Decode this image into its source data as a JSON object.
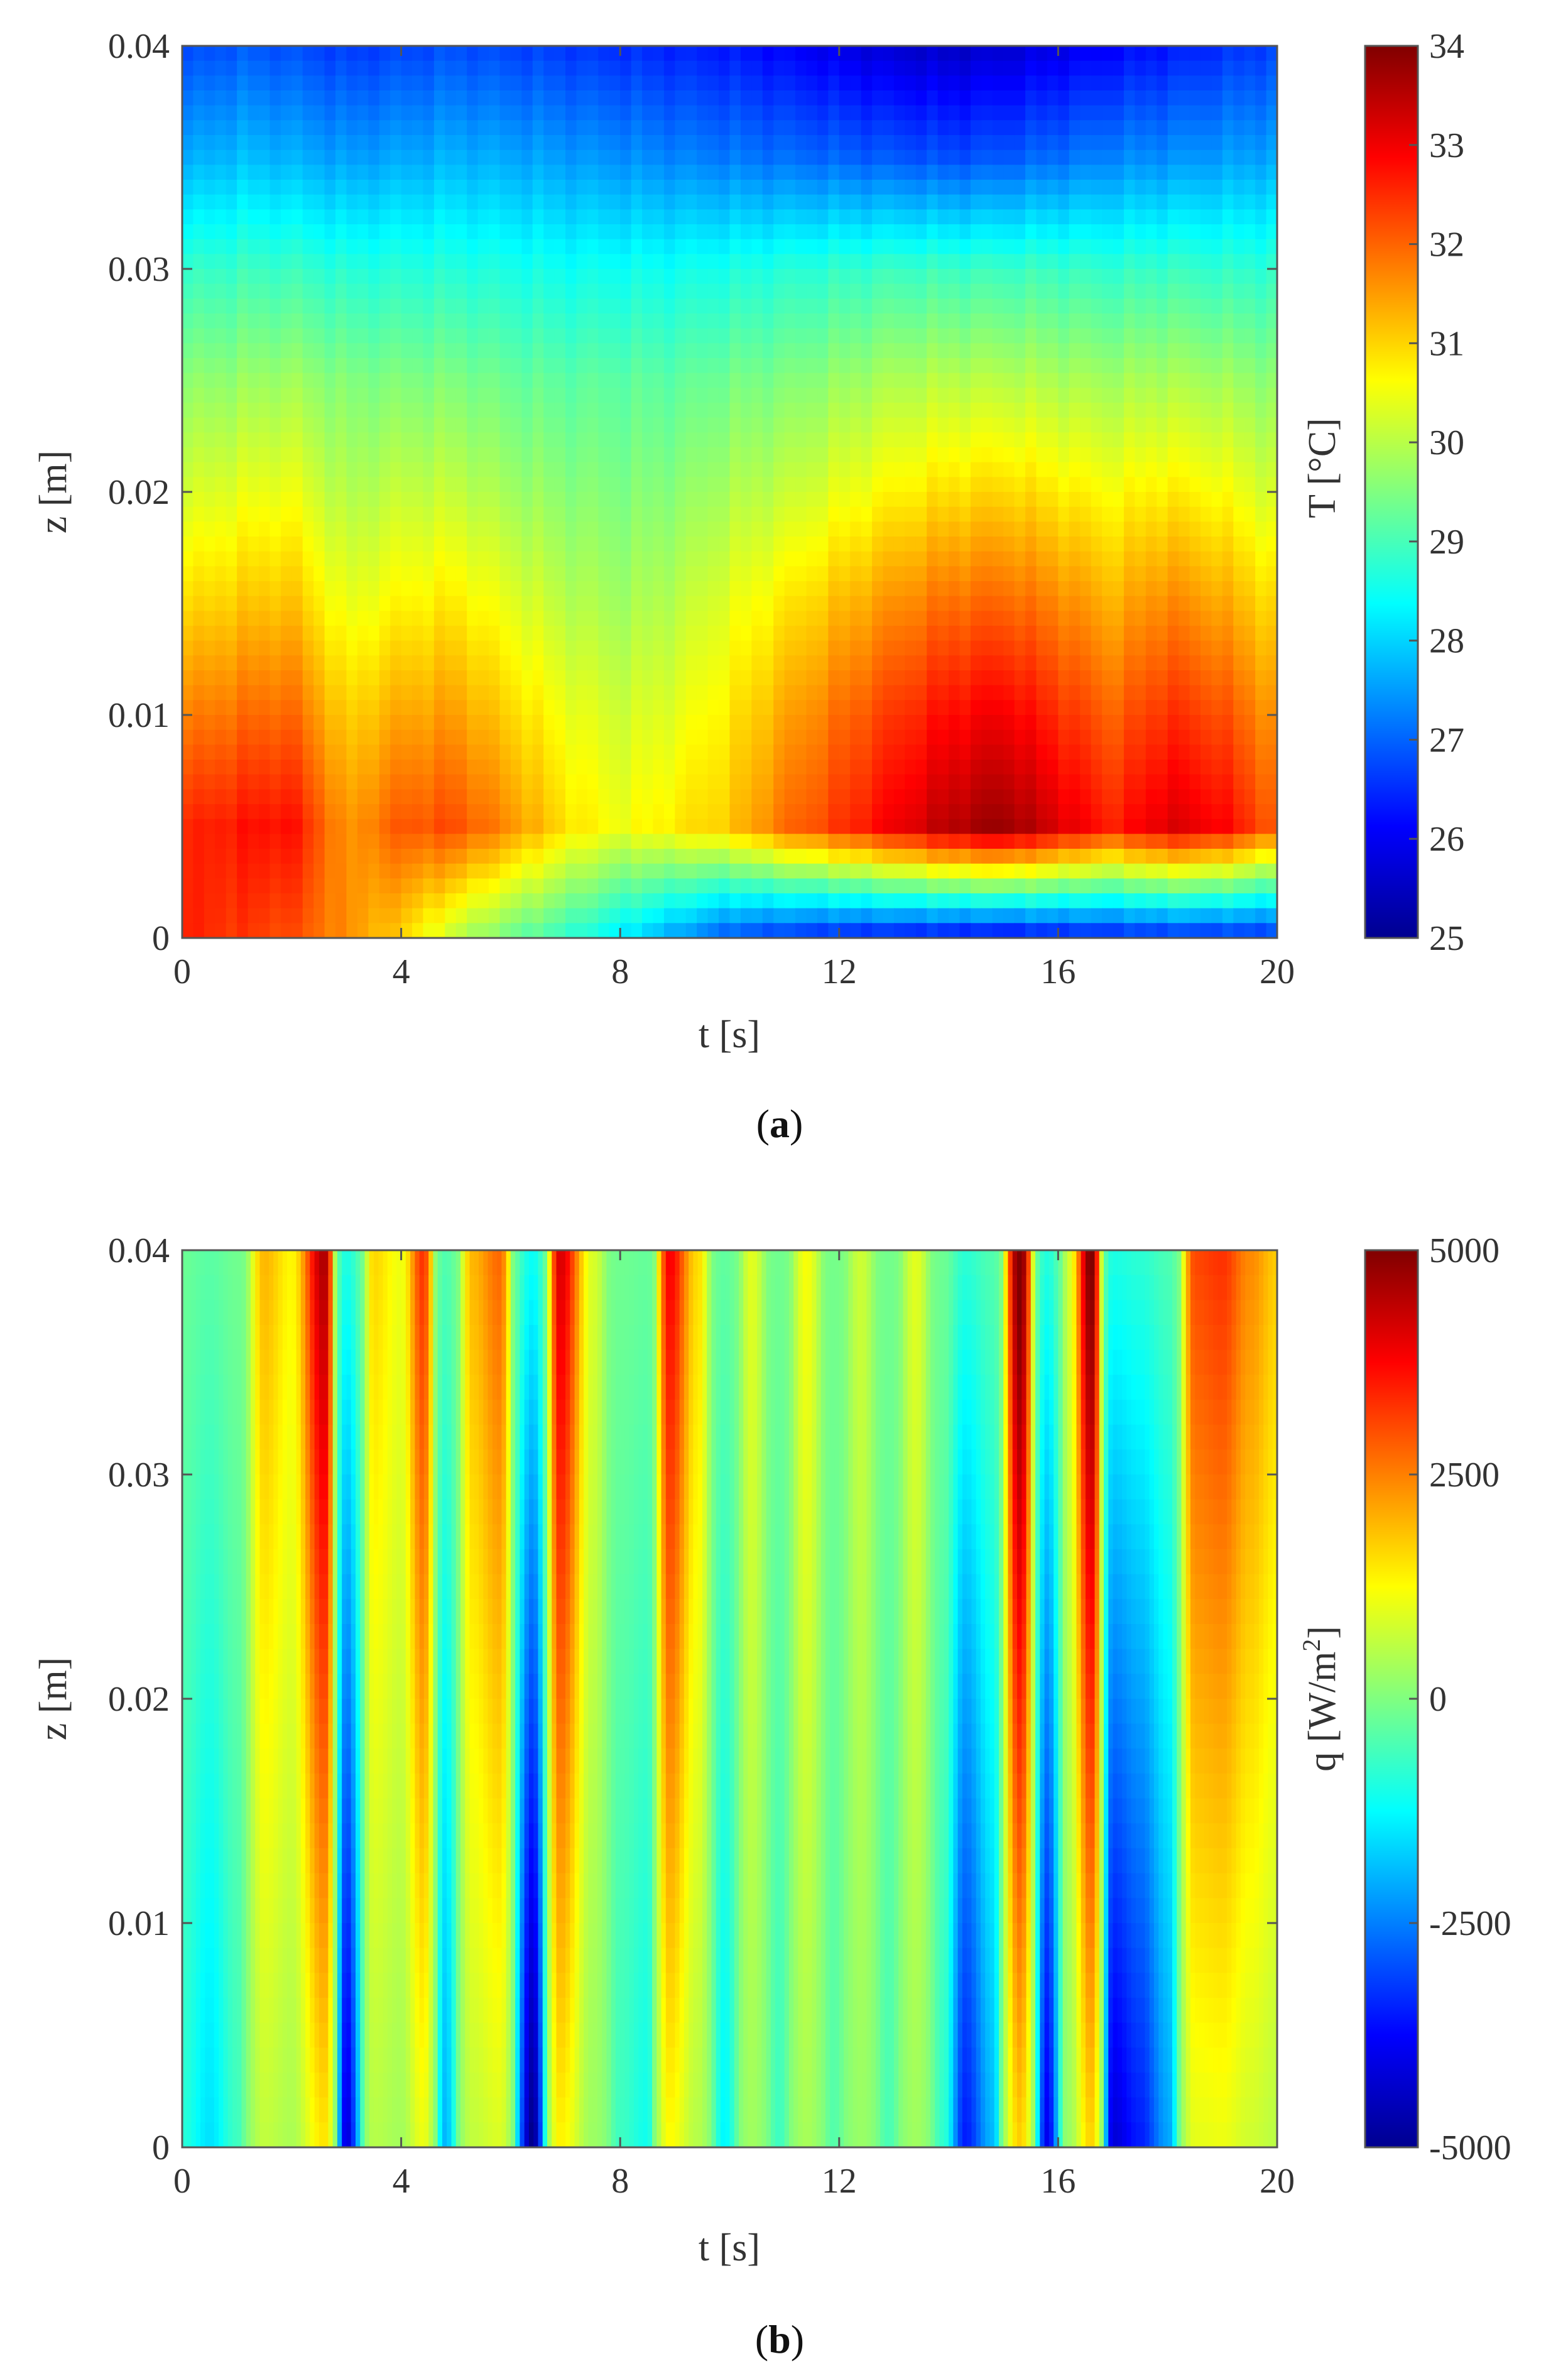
{
  "chart_data": [
    {
      "type": "heatmap",
      "panel_label": "a",
      "xlabel": "t [s]",
      "ylabel": "z [m]",
      "colorbar_label": "T [°C]",
      "xlim": [
        0,
        20
      ],
      "ylim": [
        0,
        0.04
      ],
      "x_ticks": [
        "0",
        "4",
        "8",
        "12",
        "16",
        "20"
      ],
      "y_ticks": [
        "0",
        "0.01",
        "0.02",
        "0.03",
        "0.04"
      ],
      "color_range": [
        25,
        34
      ],
      "colorbar_ticks": [
        "25",
        "26",
        "27",
        "28",
        "29",
        "30",
        "31",
        "32",
        "33",
        "34"
      ],
      "colormap": "jet",
      "grid": false,
      "t": [
        0,
        1,
        2,
        3,
        4,
        5,
        6,
        7,
        8,
        9,
        10,
        11,
        12,
        13,
        14,
        15,
        16,
        17,
        18,
        19,
        20
      ],
      "z": [
        0,
        0.005,
        0.01,
        0.015,
        0.02,
        0.025,
        0.03,
        0.035,
        0.04
      ],
      "values": [
        [
          32.6,
          32.4,
          32.2,
          31.6,
          31.0,
          30.0,
          29.3,
          28.8,
          28.2,
          27.5,
          26.8,
          26.5,
          26.3,
          26.2,
          26.1,
          26.0,
          26.2,
          26.3,
          26.4,
          26.4,
          26.5
        ],
        [
          32.5,
          32.7,
          32.8,
          31.5,
          32.1,
          32.2,
          31.6,
          30.9,
          30.5,
          30.8,
          31.1,
          31.9,
          32.4,
          33.0,
          33.5,
          33.8,
          33.2,
          32.6,
          33.2,
          32.9,
          32.0
        ],
        [
          31.7,
          31.9,
          32.0,
          31.0,
          31.4,
          31.5,
          31.0,
          30.5,
          30.2,
          30.4,
          30.8,
          31.4,
          31.9,
          32.4,
          32.8,
          33.0,
          32.5,
          32.0,
          32.5,
          32.2,
          31.5
        ],
        [
          30.9,
          31.1,
          31.2,
          30.4,
          30.7,
          30.8,
          30.4,
          30.0,
          29.8,
          30.0,
          30.4,
          30.8,
          31.2,
          31.6,
          31.9,
          32.0,
          31.7,
          31.3,
          31.7,
          31.4,
          30.9
        ],
        [
          30.2,
          30.4,
          30.5,
          29.9,
          30.1,
          30.1,
          29.8,
          29.6,
          29.5,
          29.6,
          29.9,
          30.1,
          30.4,
          30.7,
          30.9,
          31.0,
          30.8,
          30.6,
          30.8,
          30.6,
          30.2
        ],
        [
          29.6,
          29.7,
          29.8,
          29.5,
          29.5,
          29.5,
          29.3,
          29.2,
          29.2,
          29.2,
          29.4,
          29.5,
          29.7,
          29.9,
          30.0,
          30.0,
          29.9,
          29.8,
          29.9,
          29.8,
          29.6
        ],
        [
          28.8,
          28.9,
          28.9,
          28.7,
          28.7,
          28.7,
          28.6,
          28.5,
          28.5,
          28.5,
          28.6,
          28.7,
          28.8,
          28.9,
          28.9,
          28.9,
          28.9,
          28.8,
          28.9,
          28.8,
          28.8
        ],
        [
          27.6,
          27.8,
          27.7,
          27.5,
          27.6,
          27.7,
          27.6,
          27.5,
          27.4,
          27.3,
          27.2,
          27.1,
          27.0,
          26.9,
          26.8,
          26.9,
          27.1,
          27.3,
          27.4,
          27.5,
          27.6
        ],
        [
          26.7,
          26.9,
          26.8,
          26.6,
          26.7,
          26.8,
          26.7,
          26.6,
          26.5,
          26.4,
          26.3,
          26.1,
          25.9,
          25.7,
          25.6,
          25.7,
          25.9,
          26.1,
          26.3,
          26.5,
          26.7
        ]
      ]
    },
    {
      "type": "heatmap",
      "panel_label": "b",
      "xlabel": "t [s]",
      "ylabel": "z [m]",
      "colorbar_label_main": "q [W/m",
      "colorbar_label_sup": "2",
      "colorbar_label_end": "]",
      "xlim": [
        0,
        20
      ],
      "ylim": [
        0,
        0.04
      ],
      "x_ticks": [
        "0",
        "4",
        "8",
        "12",
        "16",
        "20"
      ],
      "y_ticks": [
        "0",
        "0.01",
        "0.02",
        "0.03",
        "0.04"
      ],
      "color_range": [
        -5000,
        5000
      ],
      "colorbar_ticks": [
        "-5000",
        "-2500",
        "0",
        "2500",
        "5000"
      ],
      "colormap": "jet",
      "grid": false,
      "bands": [
        {
          "t": 0.0,
          "v": -800
        },
        {
          "t": 0.5,
          "v": -1400
        },
        {
          "t": 1.0,
          "v": -600
        },
        {
          "t": 1.5,
          "v": 1800
        },
        {
          "t": 2.0,
          "v": 1200
        },
        {
          "t": 2.6,
          "v": 4200
        },
        {
          "t": 3.0,
          "v": -3800
        },
        {
          "t": 3.5,
          "v": 1500
        },
        {
          "t": 4.0,
          "v": 1000
        },
        {
          "t": 4.4,
          "v": 3000
        },
        {
          "t": 4.8,
          "v": -1800
        },
        {
          "t": 5.3,
          "v": 1800
        },
        {
          "t": 5.8,
          "v": 2500
        },
        {
          "t": 6.4,
          "v": -4500
        },
        {
          "t": 6.9,
          "v": 3800
        },
        {
          "t": 7.5,
          "v": 800
        },
        {
          "t": 8.0,
          "v": -600
        },
        {
          "t": 8.5,
          "v": -1000
        },
        {
          "t": 8.9,
          "v": 3500
        },
        {
          "t": 9.4,
          "v": 1500
        },
        {
          "t": 9.9,
          "v": -1200
        },
        {
          "t": 10.4,
          "v": 900
        },
        {
          "t": 10.9,
          "v": -600
        },
        {
          "t": 11.4,
          "v": 1100
        },
        {
          "t": 11.9,
          "v": -400
        },
        {
          "t": 12.4,
          "v": 700
        },
        {
          "t": 12.9,
          "v": -500
        },
        {
          "t": 13.4,
          "v": 900
        },
        {
          "t": 13.9,
          "v": -700
        },
        {
          "t": 14.3,
          "v": -3200
        },
        {
          "t": 14.8,
          "v": -1800
        },
        {
          "t": 15.3,
          "v": 4800
        },
        {
          "t": 15.8,
          "v": -3600
        },
        {
          "t": 16.2,
          "v": 800
        },
        {
          "t": 16.6,
          "v": 4700
        },
        {
          "t": 17.0,
          "v": -3800
        },
        {
          "t": 17.5,
          "v": -3200
        },
        {
          "t": 18.0,
          "v": -2000
        },
        {
          "t": 18.5,
          "v": 2800
        },
        {
          "t": 19.0,
          "v": 3000
        },
        {
          "t": 19.5,
          "v": 2200
        },
        {
          "t": 20.0,
          "v": 1600
        }
      ]
    }
  ]
}
